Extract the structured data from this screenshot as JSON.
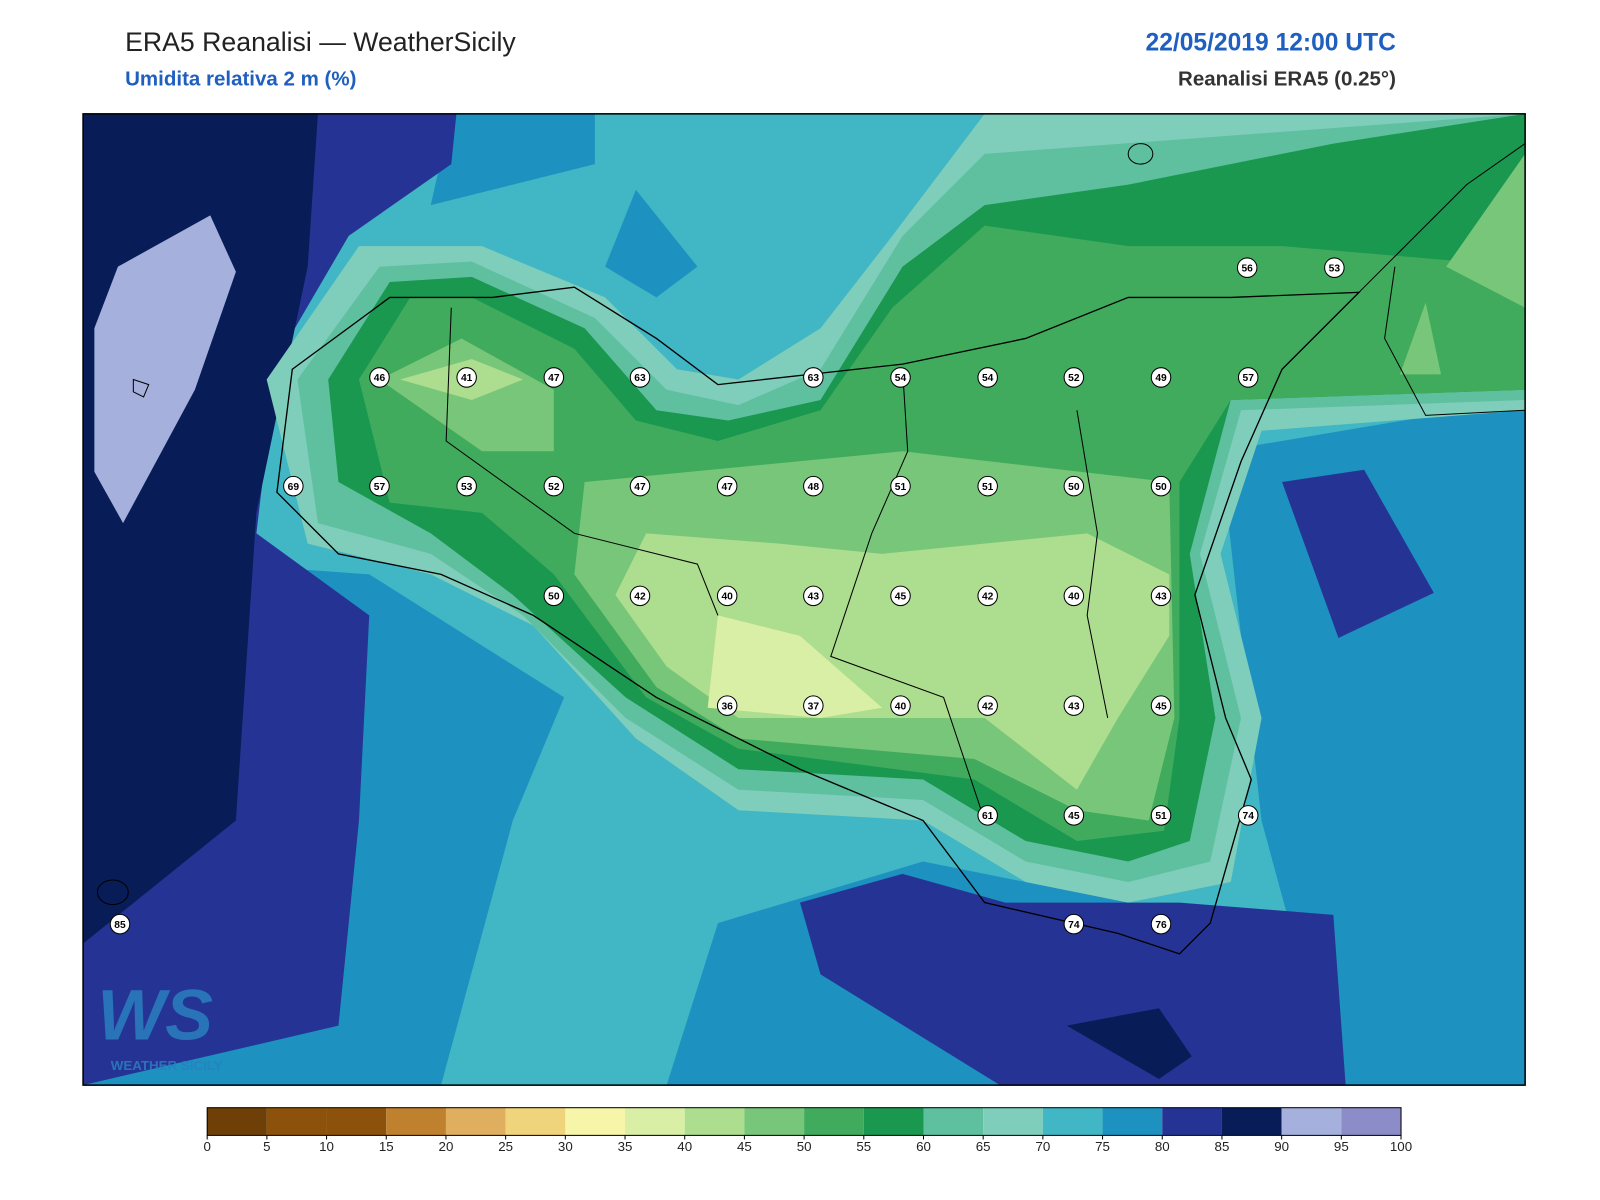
{
  "header": {
    "title": "ERA5 Reanalisi — WeatherSicily",
    "subtitle": "Umidita relativa 2 m (%)",
    "date": "22/05/2019 12:00 UTC",
    "source": "Reanalisi ERA5 (0.25°)"
  },
  "logo": {
    "mark": "WS",
    "text": "WEATHER SICILY"
  },
  "stations": [
    56,
    53,
    46,
    41,
    47,
    63,
    63,
    54,
    54,
    52,
    49,
    57,
    69,
    57,
    53,
    52,
    47,
    47,
    48,
    51,
    51,
    50,
    50,
    50,
    42,
    40,
    43,
    45,
    42,
    40,
    43,
    36,
    37,
    40,
    42,
    43,
    45,
    61,
    45,
    51,
    74,
    85,
    74,
    76
  ],
  "colorbar": {
    "ticks": [
      0,
      5,
      10,
      15,
      20,
      25,
      30,
      35,
      40,
      45,
      50,
      55,
      60,
      65,
      70,
      75,
      80,
      85,
      90,
      95,
      100
    ],
    "colors": [
      "#6f3f08",
      "#8c510a",
      "#8c510a",
      "#bf812d",
      "#dfae5e",
      "#f0d47c",
      "#f6f5a8",
      "#d9efa5",
      "#addd8e",
      "#78c679",
      "#41ab5d",
      "#1a9850",
      "#5fc0a0",
      "#7fcdbb",
      "#41b6c4",
      "#1d91c0",
      "#253494",
      "#081d58",
      "#a6b0dc",
      "#8c8cc8"
    ]
  }
}
